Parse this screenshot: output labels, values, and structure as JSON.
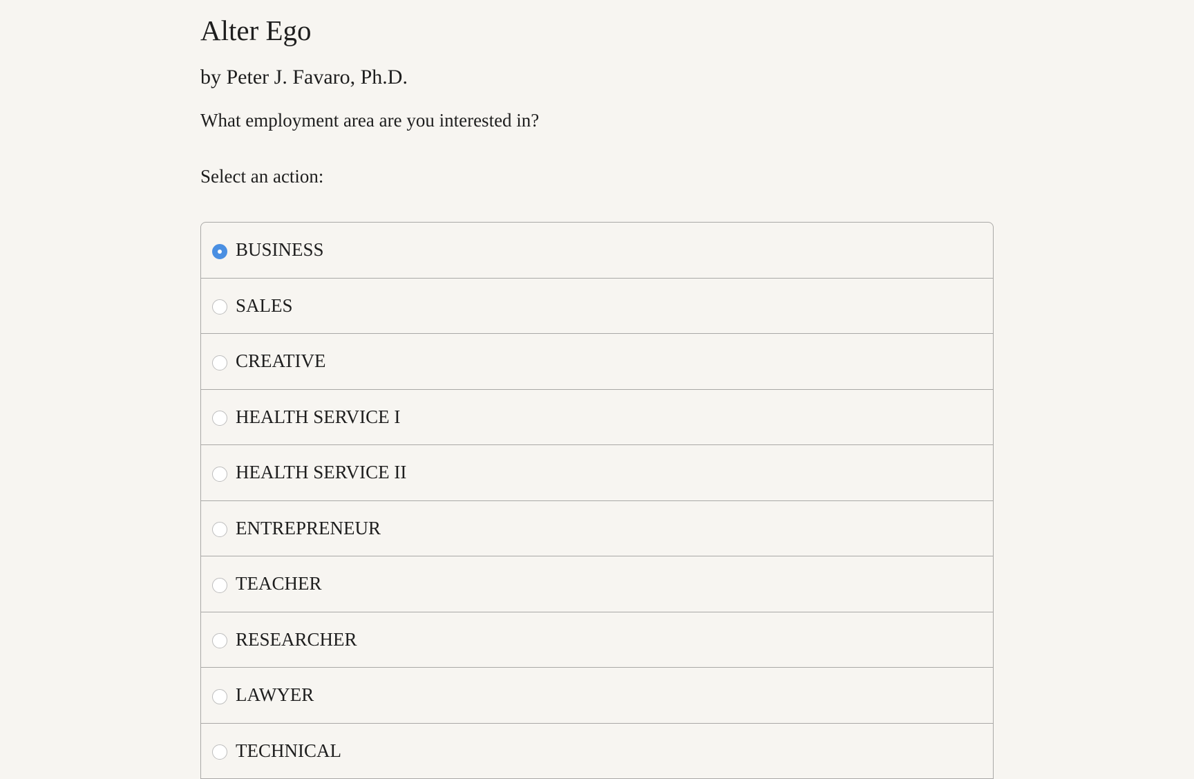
{
  "title": "Alter Ego",
  "author": "by Peter J. Favaro, Ph.D.",
  "question": "What employment area are you interested in?",
  "prompt": "Select an action:",
  "accent_color": "#4a8fe2",
  "options": [
    {
      "label": "BUSINESS",
      "selected": true
    },
    {
      "label": "SALES",
      "selected": false
    },
    {
      "label": "CREATIVE",
      "selected": false
    },
    {
      "label": "HEALTH SERVICE I",
      "selected": false
    },
    {
      "label": "HEALTH SERVICE II",
      "selected": false
    },
    {
      "label": "ENTREPRENEUR",
      "selected": false
    },
    {
      "label": "TEACHER",
      "selected": false
    },
    {
      "label": "RESEARCHER",
      "selected": false
    },
    {
      "label": "LAWYER",
      "selected": false
    },
    {
      "label": "TECHNICAL",
      "selected": false
    }
  ]
}
